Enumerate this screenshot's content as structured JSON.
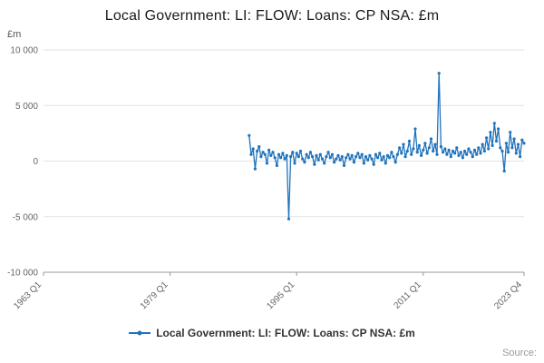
{
  "chart_data": {
    "type": "line",
    "title": "Local Government: LI: FLOW: Loans: CP NSA: £m",
    "ylabel": "£m",
    "grid": "horizontal",
    "legend_position": "bottom",
    "x_axis": {
      "min": "1963 Q1",
      "max": "2023 Q4",
      "ticks": [
        "1963 Q1",
        "1979 Q1",
        "1995 Q1",
        "2011 Q1",
        "2023 Q4"
      ]
    },
    "y_axis": {
      "min": -10000,
      "max": 10000,
      "ticks": [
        10000,
        5000,
        0,
        -5000,
        -10000
      ],
      "tick_labels": [
        "10 000",
        "5 000",
        "0",
        "-5 000",
        "-10 000"
      ],
      "label": "£m"
    },
    "series": [
      {
        "name": "Local Government: LI: FLOW: Loans: CP NSA: £m",
        "color": "#2073bc",
        "x_start": "1989 Q1",
        "x_freq": "quarterly",
        "values": [
          2300,
          600,
          1100,
          -700,
          900,
          1300,
          400,
          800,
          600,
          -200,
          1000,
          500,
          800,
          300,
          -400,
          600,
          300,
          700,
          200,
          500,
          -5200,
          400,
          800,
          -200,
          700,
          400,
          900,
          200,
          -100,
          600,
          300,
          800,
          400,
          -300,
          500,
          100,
          600,
          200,
          -200,
          400,
          800,
          300,
          600,
          -100,
          200,
          500,
          100,
          400,
          -400,
          300,
          600,
          200,
          500,
          -100,
          400,
          700,
          300,
          600,
          -200,
          400,
          100,
          500,
          200,
          -300,
          600,
          300,
          700,
          100,
          400,
          -200,
          500,
          300,
          800,
          400,
          -100,
          600,
          1200,
          700,
          1500,
          400,
          900,
          1800,
          600,
          1100,
          2900,
          800,
          1400,
          500,
          1000,
          1600,
          700,
          1200,
          2000,
          900,
          1500,
          600,
          7900,
          1300,
          800,
          1100,
          600,
          1000,
          400,
          900,
          700,
          1200,
          500,
          800,
          300,
          900,
          600,
          1100,
          800,
          400,
          1000,
          600,
          1200,
          700,
          1500,
          900,
          2100,
          1100,
          2600,
          1400,
          3400,
          1800,
          2900,
          1200,
          900,
          -900,
          1600,
          800,
          2600,
          1200,
          2000,
          700,
          1500,
          400,
          1900,
          1600
        ]
      }
    ]
  },
  "footer": {
    "source": "Source:"
  }
}
